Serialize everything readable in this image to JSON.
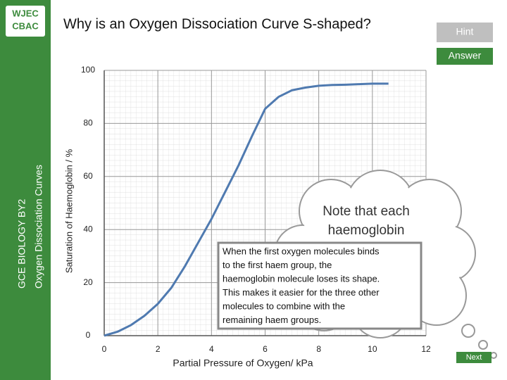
{
  "slide": {
    "logo": [
      "WJEC",
      "CBAC"
    ],
    "sidebar": [
      "GCE BIOLOGY BY2",
      "Oxygen Dissociation Curves"
    ],
    "title": "Why is an Oxygen Dissociation Curve S-shaped?",
    "buttons": {
      "hint": "Hint",
      "answer": "Answer",
      "next": "Next"
    },
    "note": {
      "heading": [
        "Note that each",
        "haemoglobin"
      ],
      "body": [
        "When the first oxygen molecules binds",
        "to the first haem group, the",
        "haemoglobin molecule loses its shape.",
        "This makes it easier for the three other",
        "molecules to combine with the",
        "remaining haem groups."
      ]
    }
  },
  "chart_data": {
    "type": "line",
    "xlabel": "Partial Pressure of Oxygen/ kPa",
    "ylabel": "Saturation of Haemoglobin / %",
    "x": [
      0,
      0.5,
      1,
      1.5,
      2,
      2.5,
      3,
      3.5,
      4,
      4.5,
      5,
      5.5,
      6,
      6.5,
      7,
      7.5,
      8,
      8.5,
      9,
      9.5,
      10,
      10.6
    ],
    "series": [
      {
        "color": "#4f7ab0",
        "values": [
          0,
          1.5,
          4,
          7.5,
          12,
          18,
          26,
          35,
          44,
          54,
          64,
          75,
          85.5,
          90,
          92.5,
          93.5,
          94.2,
          94.5,
          94.6,
          94.8,
          95,
          95
        ]
      }
    ],
    "xlim": [
      0,
      12
    ],
    "ylim": [
      0,
      100
    ],
    "xticks": [
      0,
      2,
      4,
      6,
      8,
      10,
      12
    ],
    "yticks": [
      0,
      20,
      40,
      60,
      80,
      100
    ],
    "grid": true
  }
}
